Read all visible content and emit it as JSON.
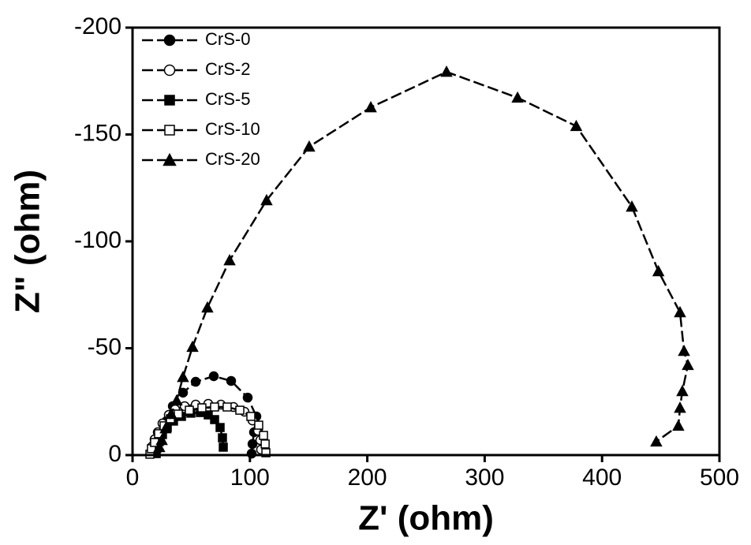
{
  "chart_data": {
    "type": "line",
    "xlabel": "Z' (ohm)",
    "ylabel": "Z\" (ohm)",
    "xlim": [
      0,
      500
    ],
    "ylim": [
      0,
      -200
    ],
    "xticks": [
      0,
      100,
      200,
      300,
      400,
      500
    ],
    "yticks": [
      0,
      -50,
      -100,
      -150,
      -200
    ],
    "legend": "upper left",
    "series": [
      {
        "name": "CrS-0",
        "color": "#000000",
        "marker": "circle",
        "filled": true,
        "x": [
          19.5,
          21.5,
          24.9,
          28.9,
          34.3,
          43.0,
          53.8,
          69.2,
          84.0,
          98.1,
          105.5,
          103.5,
          102.2,
          101.5
        ],
        "values": [
          -2.6,
          -6.3,
          -10.7,
          -15.9,
          -22.9,
          -29.2,
          -34.3,
          -36.9,
          -34.7,
          -26.9,
          -18.1,
          -10.7,
          -5.2,
          -0.7
        ]
      },
      {
        "name": "CrS-2",
        "color": "#000000",
        "marker": "circle",
        "filled": false,
        "x": [
          16.1,
          16.8,
          18.8,
          21.5,
          25.5,
          30.9,
          36.3,
          44.4,
          53.8,
          64.5,
          75.3,
          86.0,
          95.4,
          102.2,
          106.9,
          108.9,
          109.5
        ],
        "values": [
          -1.1,
          -4.1,
          -7.4,
          -10.7,
          -14.8,
          -18.8,
          -21.4,
          -22.9,
          -23.6,
          -24.0,
          -23.6,
          -22.5,
          -20.3,
          -16.2,
          -11.4,
          -7.0,
          -2.6
        ]
      },
      {
        "name": "CrS-5",
        "color": "#000000",
        "marker": "square",
        "filled": true,
        "x": [
          20.2,
          20.8,
          22.8,
          25.5,
          29.6,
          34.9,
          41.7,
          49.7,
          57.8,
          64.5,
          69.9,
          74.6,
          76.6,
          77.3
        ],
        "values": [
          -0.7,
          -3.3,
          -6.3,
          -9.6,
          -12.9,
          -15.9,
          -18.1,
          -19.6,
          -19.9,
          -18.8,
          -16.6,
          -12.9,
          -8.1,
          -3.7
        ]
      },
      {
        "name": "CrS-10",
        "color": "#000000",
        "marker": "square",
        "filled": false,
        "x": [
          14.8,
          16.1,
          18.8,
          22.2,
          26.9,
          32.3,
          39.0,
          48.4,
          59.1,
          69.9,
          80.6,
          91.4,
          100.8,
          107.5,
          111.6,
          113.0,
          113.6
        ],
        "values": [
          -0.4,
          -3.0,
          -5.9,
          -10.0,
          -13.7,
          -17.0,
          -19.2,
          -21.0,
          -22.1,
          -22.5,
          -22.5,
          -21.0,
          -18.1,
          -14.0,
          -9.2,
          -5.2,
          -1.1
        ]
      },
      {
        "name": "CrS-20",
        "color": "#000000",
        "marker": "triangle",
        "filled": true,
        "x": [
          22.8,
          24.9,
          28.2,
          32.9,
          37.6,
          43.0,
          51.1,
          63.8,
          82.7,
          114.2,
          150.5,
          203.0,
          267.5,
          328.0,
          378.0,
          425.4,
          448.0,
          466.4,
          469.8,
          473.1,
          468.4,
          466.4,
          465.0,
          446.2
        ],
        "values": [
          -3.7,
          -7.0,
          -12.5,
          -19.2,
          -25.5,
          -36.5,
          -50.6,
          -69.0,
          -91.1,
          -119.2,
          -144.3,
          -162.7,
          -179.3,
          -167.2,
          -153.9,
          -116.2,
          -86.0,
          -66.8,
          -48.7,
          -42.1,
          -29.9,
          -22.1,
          -13.7,
          -6.3
        ]
      }
    ]
  }
}
